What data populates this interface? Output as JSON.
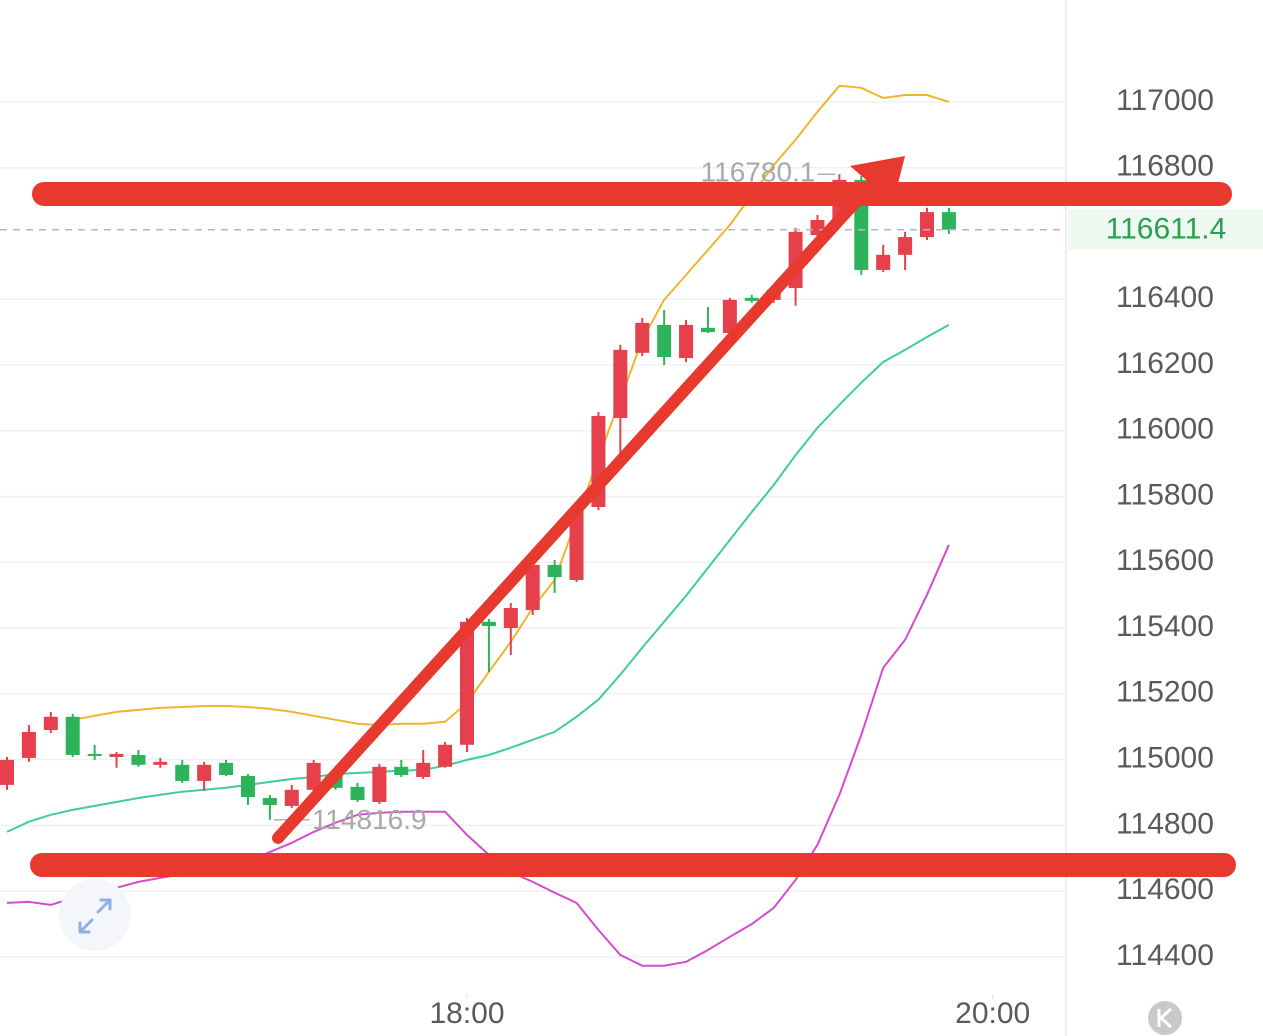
{
  "chart_data": {
    "type": "candlestick",
    "categories": [
      null,
      null,
      null,
      null,
      null,
      null,
      null,
      null,
      null,
      null,
      null,
      null,
      null,
      null,
      null,
      null,
      null,
      null,
      null,
      null,
      null,
      null,
      null,
      null,
      null,
      null,
      null,
      null,
      null,
      null,
      null,
      null,
      null,
      null,
      null,
      null,
      null,
      null,
      null,
      null,
      null,
      null,
      null,
      null
    ],
    "open": [
      114923,
      115005,
      115090,
      115130,
      115017,
      115008,
      115014,
      114984,
      114984,
      114935,
      114990,
      114950,
      114883,
      114859,
      114908,
      114959,
      114917,
      114871,
      114978,
      114947,
      114978,
      115045,
      115419,
      115400,
      115455,
      115592,
      115546,
      115768,
      116039,
      116237,
      116322,
      116221,
      116313,
      116297,
      116404,
      116398,
      116434,
      116595,
      116641,
      116763,
      116489,
      116535,
      116589,
      116665
    ],
    "high": [
      115008,
      115105,
      115145,
      115139,
      115045,
      115023,
      115029,
      115005,
      114999,
      114993,
      114999,
      114956,
      114892,
      114923,
      114999,
      114968,
      114929,
      114987,
      114999,
      115029,
      115054,
      115431,
      115428,
      115476,
      115607,
      115607,
      115774,
      116057,
      116261,
      116343,
      116367,
      116337,
      116376,
      116404,
      116413,
      116440,
      116617,
      116656,
      116780.1,
      116775,
      116565,
      116605,
      116678,
      116678
    ],
    "low": [
      114908,
      114993,
      115081,
      115008,
      114999,
      114975,
      114978,
      114975,
      114929,
      114905,
      114950,
      114862,
      114816.9,
      114853,
      114899,
      114908,
      114871,
      114865,
      114947,
      114941,
      114975,
      115023,
      115266,
      115318,
      115440,
      115507,
      115540,
      115759,
      115926,
      116227,
      116200,
      116209,
      116297,
      116291,
      116389,
      116389,
      116380,
      116586,
      116632,
      116474,
      116483,
      116489,
      116580,
      116598
    ],
    "close": [
      114999,
      115084,
      115130,
      115014,
      115014,
      115017,
      114984,
      114993,
      114935,
      114984,
      114953,
      114886,
      114862,
      114908,
      114990,
      114914,
      114877,
      114978,
      114953,
      114990,
      115045,
      115419,
      115406,
      115461,
      115592,
      115555,
      115759,
      116045,
      116246,
      116328,
      116224,
      116322,
      116300,
      116398,
      116395,
      116428,
      116605,
      116641,
      116763,
      116489,
      116535,
      116589,
      116665,
      116611.4
    ],
    "up_color": "#e5404c",
    "down_color": "#2db45a",
    "lines": [
      {
        "color": "#f0b52e",
        "values": [
          null,
          null,
          null,
          115121,
          115133,
          115145,
          115151,
          115157,
          115160,
          115163,
          115163,
          115160,
          115154,
          115145,
          115133,
          115121,
          115109,
          115105,
          115109,
          115109,
          115115,
          115172,
          115267,
          115358,
          115461,
          115546,
          115729,
          115917,
          116094,
          116276,
          116398,
          116474,
          116550,
          116626,
          116717,
          116808,
          116885,
          116970,
          117049,
          117043,
          117012,
          117021,
          117021,
          117000
        ]
      },
      {
        "color": "#3fcca0",
        "values": [
          114780,
          114811,
          114832,
          114847,
          114859,
          114871,
          114883,
          114893,
          114902,
          114908,
          114914,
          114923,
          114932,
          114941,
          114947,
          114956,
          114959,
          114963,
          114966,
          114969,
          114981,
          114999,
          115014,
          115036,
          115060,
          115084,
          115130,
          115182,
          115258,
          115340,
          115419,
          115498,
          115583,
          115668,
          115753,
          115835,
          115926,
          116009,
          116079,
          116146,
          116209,
          116246,
          116285,
          116322
        ]
      },
      {
        "color": "#d54ccf",
        "values": [
          114564,
          114567,
          114558,
          114579,
          114604,
          114610,
          114628,
          114640,
          114652,
          114665,
          114680,
          114689,
          114719,
          114747,
          114780,
          114808,
          114832,
          114838,
          114841,
          114841,
          114841,
          114771,
          114710,
          114658,
          114628,
          114595,
          114564,
          114482,
          114406,
          114373,
          114373,
          114385,
          114421,
          114461,
          114500,
          114549,
          114634,
          114741,
          114893,
          115075,
          115279,
          115364,
          115501,
          115653
        ]
      }
    ],
    "xlim": [
      -0.32,
      48.3
    ],
    "xticks": [
      {
        "value": 21,
        "label": "18:00"
      },
      {
        "value": 45,
        "label": "20:00"
      }
    ],
    "ylim": [
      114284,
      117310
    ],
    "yticks": [
      114400,
      114600,
      114800,
      115000,
      115200,
      115400,
      115600,
      115800,
      116000,
      116200,
      116400,
      116800,
      117000
    ],
    "grid": true
  }
}
